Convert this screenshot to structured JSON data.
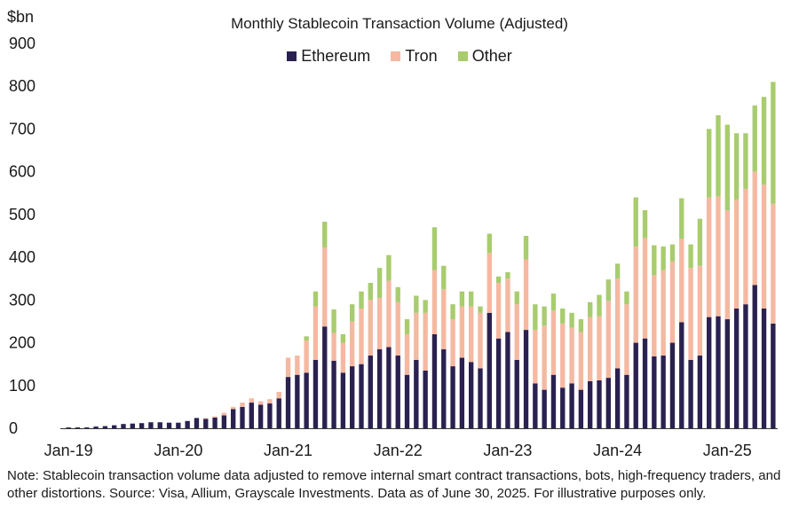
{
  "chart_data": {
    "type": "bar",
    "stacked": true,
    "title": "Monthly Stablecoin Transaction Volume (Adjusted)",
    "ylabel": "$bn",
    "ylim": [
      0,
      900
    ],
    "yticks": [
      0,
      100,
      200,
      300,
      400,
      500,
      600,
      700,
      800,
      900
    ],
    "xtick_labels": [
      "Jan-19",
      "Jan-20",
      "Jan-21",
      "Jan-22",
      "Jan-23",
      "Jan-24",
      "Jan-25"
    ],
    "xtick_months": [
      0,
      12,
      24,
      36,
      48,
      60,
      72
    ],
    "legend": [
      "Ethereum",
      "Tron",
      "Other"
    ],
    "colors": {
      "Ethereum": "#2a2150",
      "Tron": "#f5b8a0",
      "Other": "#a8cc6e"
    },
    "categories": [
      "2019-01",
      "2019-02",
      "2019-03",
      "2019-04",
      "2019-05",
      "2019-06",
      "2019-07",
      "2019-08",
      "2019-09",
      "2019-10",
      "2019-11",
      "2019-12",
      "2020-01",
      "2020-02",
      "2020-03",
      "2020-04",
      "2020-05",
      "2020-06",
      "2020-07",
      "2020-08",
      "2020-09",
      "2020-10",
      "2020-11",
      "2020-12",
      "2021-01",
      "2021-02",
      "2021-03",
      "2021-04",
      "2021-05",
      "2021-06",
      "2021-07",
      "2021-08",
      "2021-09",
      "2021-10",
      "2021-11",
      "2021-12",
      "2022-01",
      "2022-02",
      "2022-03",
      "2022-04",
      "2022-05",
      "2022-06",
      "2022-07",
      "2022-08",
      "2022-09",
      "2022-10",
      "2022-11",
      "2022-12",
      "2023-01",
      "2023-02",
      "2023-03",
      "2023-04",
      "2023-05",
      "2023-06",
      "2023-07",
      "2023-08",
      "2023-09",
      "2023-10",
      "2023-11",
      "2023-12",
      "2024-01",
      "2024-02",
      "2024-03",
      "2024-04",
      "2024-05",
      "2024-06",
      "2024-07",
      "2024-08",
      "2024-09",
      "2024-10",
      "2024-11",
      "2024-12",
      "2025-01",
      "2025-02",
      "2025-03",
      "2025-04",
      "2025-05",
      "2025-06"
    ],
    "series": [
      {
        "name": "Ethereum",
        "values": [
          2,
          2,
          2,
          4,
          5,
          7,
          10,
          11,
          12,
          14,
          14,
          13,
          13,
          17,
          24,
          22,
          25,
          30,
          45,
          50,
          60,
          55,
          58,
          70,
          120,
          125,
          130,
          160,
          238,
          158,
          130,
          145,
          150,
          170,
          185,
          190,
          170,
          125,
          160,
          135,
          220,
          185,
          145,
          165,
          155,
          140,
          270,
          210,
          225,
          160,
          230,
          105,
          90,
          125,
          95,
          105,
          90,
          110,
          112,
          118,
          140,
          125,
          200,
          210,
          168,
          170,
          200,
          248,
          160,
          170,
          260,
          262,
          255,
          280,
          290,
          335,
          280,
          245
        ]
      },
      {
        "name": "Tron",
        "values": [
          0,
          0,
          0,
          0,
          0,
          0,
          0,
          0,
          0,
          0,
          0,
          0,
          0,
          0,
          0,
          2,
          3,
          6,
          5,
          10,
          10,
          8,
          10,
          15,
          45,
          45,
          75,
          125,
          185,
          65,
          70,
          105,
          130,
          130,
          120,
          155,
          125,
          95,
          110,
          135,
          150,
          140,
          110,
          120,
          130,
          130,
          140,
          130,
          125,
          130,
          165,
          125,
          150,
          150,
          150,
          130,
          135,
          150,
          150,
          180,
          210,
          165,
          225,
          235,
          190,
          200,
          190,
          195,
          215,
          210,
          280,
          280,
          255,
          255,
          270,
          265,
          290,
          280
        ]
      },
      {
        "name": "Other",
        "values": [
          0,
          0,
          0,
          0,
          0,
          0,
          0,
          0,
          0,
          0,
          0,
          0,
          0,
          0,
          0,
          0,
          0,
          0,
          0,
          0,
          0,
          0,
          0,
          0,
          0,
          0,
          10,
          35,
          60,
          55,
          20,
          40,
          40,
          40,
          70,
          60,
          35,
          35,
          40,
          30,
          100,
          55,
          35,
          35,
          35,
          15,
          45,
          15,
          15,
          30,
          55,
          60,
          45,
          40,
          35,
          35,
          30,
          35,
          50,
          50,
          35,
          30,
          115,
          65,
          70,
          55,
          40,
          95,
          55,
          110,
          160,
          190,
          200,
          155,
          130,
          155,
          205,
          285
        ]
      }
    ]
  },
  "footnote": "Note: Stablecoin transaction volume data adjusted to remove internal smart contract transactions, bots, high-frequency traders, and other distortions. Source: Visa, Allium, Grayscale Investments. Data as of June 30, 2025. For illustrative purposes only."
}
